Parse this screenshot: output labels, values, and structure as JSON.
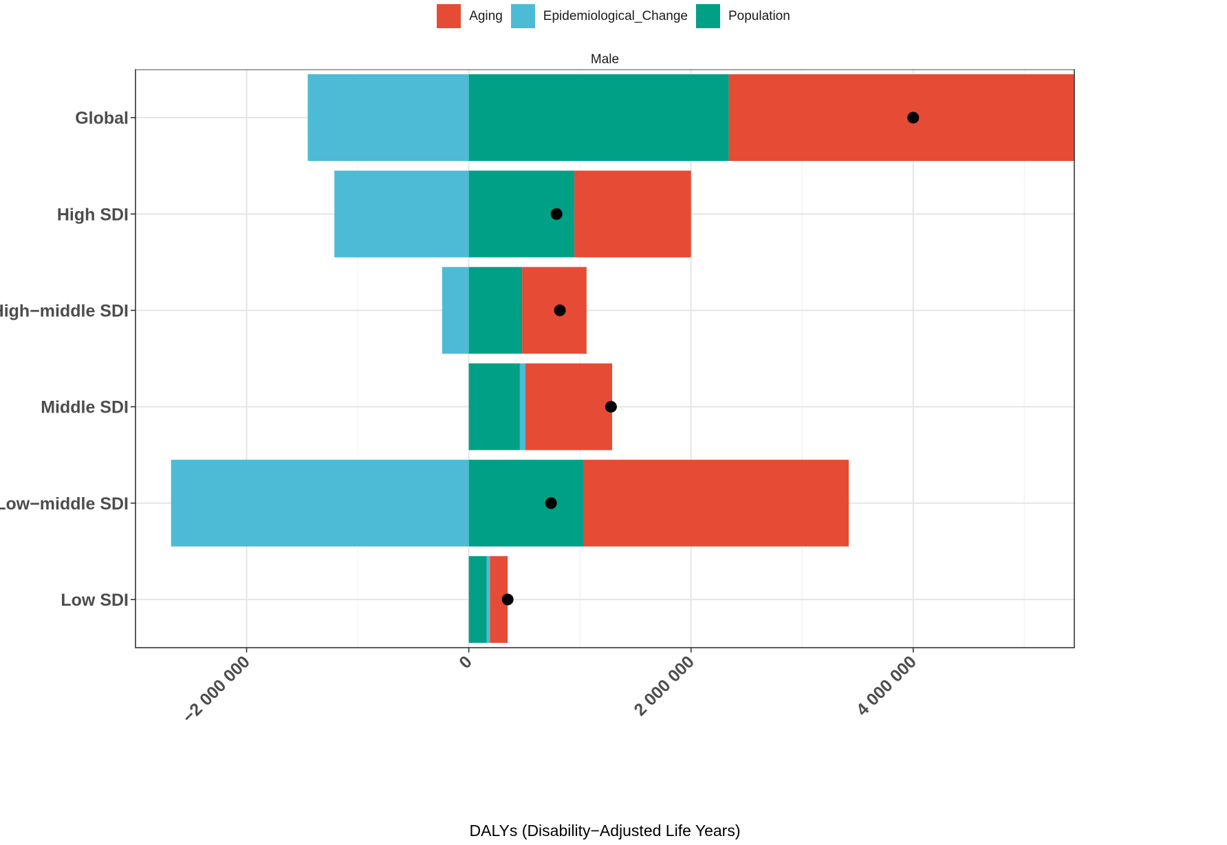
{
  "chart_data": {
    "type": "bar",
    "orientation": "horizontal",
    "stacked": true,
    "facet": "Male",
    "xlabel": "DALYs (Disability−Adjusted Life Years)",
    "ylabel": "",
    "xlim": [
      -3000000,
      5450000
    ],
    "x_ticks": [
      {
        "value": -2000000,
        "label": "−2 000 000"
      },
      {
        "value": 0,
        "label": "0"
      },
      {
        "value": 2000000,
        "label": "2 000 000"
      },
      {
        "value": 4000000,
        "label": "4 000 000"
      }
    ],
    "minor_ticks": [
      -3000000,
      -1000000,
      1000000,
      3000000,
      5000000
    ],
    "categories": [
      "Global",
      "High SDI",
      "High−middle SDI",
      "Middle SDI",
      "Low−middle SDI",
      "Low SDI"
    ],
    "legend": [
      {
        "name": "Aging",
        "color": "#E64B35"
      },
      {
        "name": "Epidemiological_Change",
        "color": "#4DBBD5"
      },
      {
        "name": "Population",
        "color": "#00A087"
      }
    ],
    "series": [
      {
        "name": "Population",
        "values": [
          2340000,
          950000,
          480000,
          460000,
          1030000,
          160000
        ]
      },
      {
        "name": "Epidemiological_Change",
        "values": [
          -1450000,
          -1210000,
          -240000,
          50000,
          -2680000,
          30000
        ]
      },
      {
        "name": "Aging",
        "values": [
          3110000,
          1050000,
          580000,
          780000,
          2390000,
          160000
        ]
      }
    ],
    "totals": [
      4000000,
      790000,
      820000,
      1280000,
      740000,
      350000
    ]
  }
}
